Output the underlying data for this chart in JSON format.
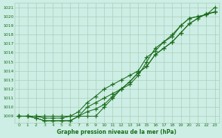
{
  "x": [
    0,
    1,
    2,
    3,
    4,
    5,
    6,
    7,
    8,
    9,
    10,
    11,
    12,
    13,
    14,
    15,
    16,
    17,
    18,
    19,
    20,
    21,
    22,
    23
  ],
  "series": [
    [
      1009.0,
      1009.0,
      1009.0,
      1009.0,
      1009.0,
      1009.0,
      1009.0,
      1009.0,
      1009.0,
      1009.0,
      1010.0,
      1011.0,
      1012.0,
      1012.5,
      1013.5,
      1015.0,
      1016.5,
      1017.2,
      1017.8,
      1019.0,
      1019.8,
      1020.0,
      1020.2,
      1020.5
    ],
    [
      1009.0,
      1009.0,
      1008.8,
      1008.5,
      1008.5,
      1008.5,
      1008.5,
      1009.0,
      1009.5,
      1009.8,
      1010.3,
      1011.2,
      1012.0,
      1012.8,
      1013.8,
      1014.5,
      1015.8,
      1016.5,
      1017.2,
      1018.2,
      1019.2,
      1019.8,
      1020.3,
      1020.5
    ],
    [
      1009.0,
      1009.0,
      1008.8,
      1008.5,
      1008.5,
      1008.5,
      1008.5,
      1009.0,
      1010.0,
      1010.5,
      1011.0,
      1011.5,
      1012.0,
      1012.8,
      1013.8,
      1014.5,
      1015.8,
      1016.5,
      1017.2,
      1018.2,
      1019.2,
      1019.8,
      1020.3,
      1020.5
    ],
    [
      1009.0,
      1009.0,
      1009.0,
      1008.8,
      1008.8,
      1008.8,
      1009.0,
      1009.5,
      1010.5,
      1011.2,
      1012.0,
      1012.5,
      1013.0,
      1013.5,
      1014.0,
      1015.5,
      1016.2,
      1017.2,
      1018.0,
      1019.0,
      1019.8,
      1020.0,
      1020.2,
      1021.0
    ]
  ],
  "line_styles": [
    {
      "color": "#1a6b1a",
      "marker": "+",
      "linewidth": 0.8,
      "markersize": 4
    },
    {
      "color": "#1a6b1a",
      "marker": "+",
      "linewidth": 0.8,
      "markersize": 4
    },
    {
      "color": "#1a6b1a",
      "marker": "+",
      "linewidth": 0.8,
      "markersize": 4
    },
    {
      "color": "#1a6b1a",
      "marker": "+",
      "linewidth": 0.8,
      "markersize": 4
    }
  ],
  "background_color": "#cceee4",
  "grid_color": "#aaccbb",
  "axis_label_color": "#1a6b1a",
  "tick_label_color": "#1a6b1a",
  "ylim": [
    1008.3,
    1021.5
  ],
  "yticks": [
    1009,
    1010,
    1011,
    1012,
    1013,
    1014,
    1015,
    1016,
    1017,
    1018,
    1019,
    1020,
    1021
  ],
  "xticks": [
    0,
    1,
    2,
    3,
    4,
    5,
    6,
    7,
    8,
    9,
    10,
    11,
    12,
    13,
    14,
    15,
    16,
    17,
    18,
    19,
    20,
    21,
    22,
    23
  ],
  "xlabel": "Graphe pression niveau de la mer (hPa)"
}
